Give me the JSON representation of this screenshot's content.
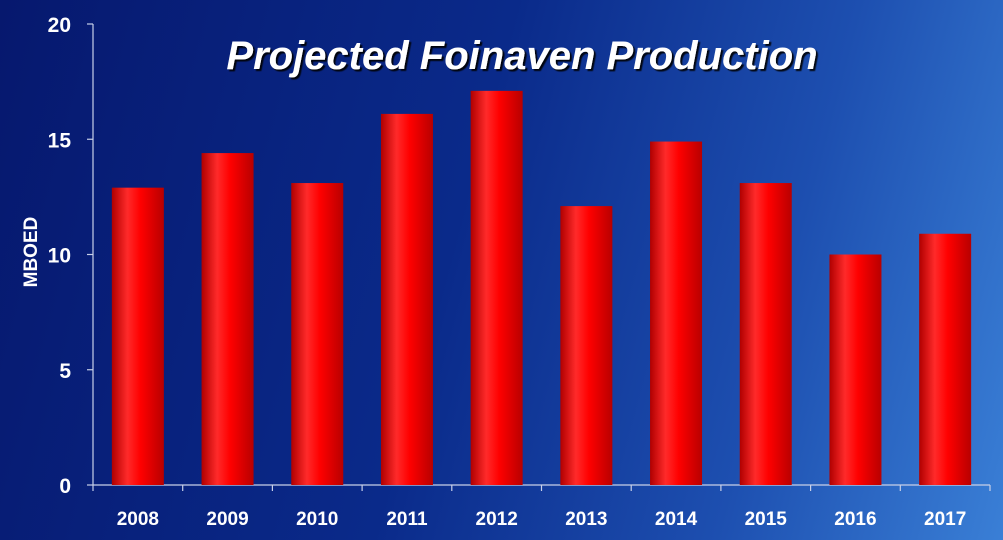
{
  "chart_data": {
    "type": "bar",
    "title": "Projected Foinaven Production",
    "xlabel": "",
    "ylabel": "MBOED",
    "categories": [
      "2008",
      "2009",
      "2010",
      "2011",
      "2012",
      "2013",
      "2014",
      "2015",
      "2016",
      "2017"
    ],
    "values": [
      12.9,
      14.4,
      13.1,
      16.1,
      17.1,
      12.1,
      14.9,
      13.1,
      10.0,
      10.9
    ],
    "ylim": [
      0,
      20
    ],
    "yticks": [
      "0",
      "5",
      "10",
      "15",
      "20"
    ],
    "grid": false,
    "legend": "none",
    "colors": {
      "bar": "#ff0000",
      "bar_shadow": "#a00000",
      "text": "#ffffff",
      "axis": "#c8d0e8"
    }
  }
}
